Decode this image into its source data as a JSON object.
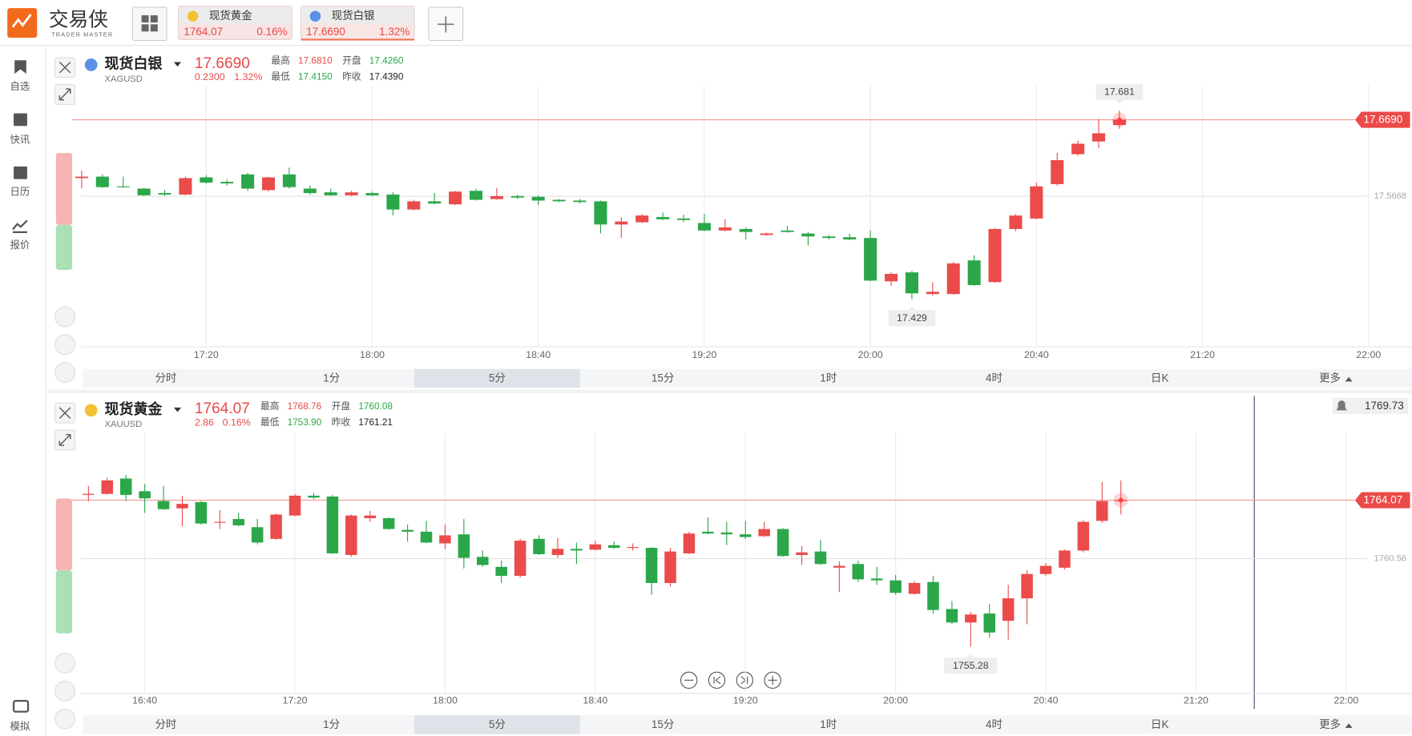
{
  "app": {
    "logo": "交易侠",
    "logo_sub": "TRADER MASTER"
  },
  "tabs": [
    {
      "name": "现货黄金",
      "price": "1764.07",
      "change": "0.16%"
    },
    {
      "name": "现货白银",
      "price": "17.6690",
      "change": "1.32%"
    }
  ],
  "sidebar": [
    "自选",
    "快讯",
    "日历",
    "报价"
  ],
  "sidebar_bottom": "模拟",
  "chart_data": [
    {
      "type": "candlestick",
      "name": "现货白银",
      "symbol": "XAGUSD",
      "price": "17.6690",
      "change": "0.2300",
      "change_pct": "1.32%",
      "stats": [
        {
          "label": "最高",
          "value": "17.6810",
          "color": "#e84a4a"
        },
        {
          "label": "开盘",
          "value": "17.4260",
          "color": "#2aa845"
        },
        {
          "label": "最低",
          "value": "17.4150",
          "color": "#2aa845"
        },
        {
          "label": "昨收",
          "value": "17.4390",
          "color": "#222222"
        }
      ],
      "periods": [
        "分时",
        "1分",
        "5分",
        "15分",
        "1时",
        "4时",
        "日K",
        "更多"
      ],
      "selected_period": 2,
      "x": [
        0,
        1,
        2,
        3,
        4,
        5,
        6,
        7,
        8,
        9,
        10,
        11,
        12,
        13,
        14,
        15,
        16,
        17,
        18,
        19,
        20,
        21,
        22,
        23,
        24,
        25,
        26,
        27,
        28,
        29,
        30,
        31,
        32,
        33,
        34,
        35,
        36,
        37,
        38,
        39,
        40,
        41,
        42,
        43,
        44,
        45,
        46,
        47,
        48,
        49,
        50
      ],
      "open": [
        17.591,
        17.593,
        17.58,
        17.577,
        17.571,
        17.569,
        17.592,
        17.586,
        17.596,
        17.575,
        17.596,
        17.577,
        17.572,
        17.568,
        17.571,
        17.569,
        17.549,
        17.56,
        17.556,
        17.574,
        17.563,
        17.567,
        17.566,
        17.562,
        17.561,
        17.56,
        17.529,
        17.532,
        17.539,
        17.537,
        17.531,
        17.521,
        17.523,
        17.515,
        17.521,
        17.517,
        17.513,
        17.512,
        17.511,
        17.453,
        17.465,
        17.436,
        17.436,
        17.481,
        17.452,
        17.523,
        17.537,
        17.583,
        17.623,
        17.64,
        17.662
      ],
      "high": [
        17.601,
        17.596,
        17.593,
        17.578,
        17.575,
        17.593,
        17.595,
        17.589,
        17.598,
        17.593,
        17.605,
        17.581,
        17.577,
        17.574,
        17.573,
        17.572,
        17.562,
        17.571,
        17.574,
        17.577,
        17.578,
        17.569,
        17.568,
        17.563,
        17.563,
        17.561,
        17.539,
        17.543,
        17.545,
        17.542,
        17.543,
        17.536,
        17.525,
        17.518,
        17.527,
        17.519,
        17.515,
        17.517,
        17.521,
        17.465,
        17.467,
        17.452,
        17.479,
        17.488,
        17.524,
        17.543,
        17.585,
        17.625,
        17.641,
        17.67,
        17.681
      ],
      "low": [
        17.577,
        17.578,
        17.578,
        17.567,
        17.567,
        17.568,
        17.584,
        17.581,
        17.574,
        17.573,
        17.577,
        17.569,
        17.567,
        17.567,
        17.567,
        17.541,
        17.548,
        17.556,
        17.555,
        17.561,
        17.562,
        17.563,
        17.555,
        17.559,
        17.557,
        17.517,
        17.511,
        17.531,
        17.535,
        17.532,
        17.52,
        17.52,
        17.509,
        17.514,
        17.518,
        17.501,
        17.509,
        17.508,
        17.453,
        17.447,
        17.429,
        17.434,
        17.435,
        17.447,
        17.451,
        17.52,
        17.536,
        17.581,
        17.621,
        17.631,
        17.657
      ],
      "close": [
        17.593,
        17.579,
        17.579,
        17.568,
        17.569,
        17.591,
        17.585,
        17.584,
        17.577,
        17.592,
        17.579,
        17.571,
        17.568,
        17.572,
        17.568,
        17.549,
        17.56,
        17.557,
        17.573,
        17.562,
        17.567,
        17.565,
        17.561,
        17.56,
        17.559,
        17.529,
        17.533,
        17.541,
        17.536,
        17.535,
        17.521,
        17.525,
        17.519,
        17.517,
        17.519,
        17.513,
        17.511,
        17.509,
        17.454,
        17.463,
        17.437,
        17.439,
        17.477,
        17.448,
        17.523,
        17.541,
        17.58,
        17.615,
        17.637,
        17.651,
        17.669
      ],
      "xlim": [
        -0.5,
        64
      ],
      "xticks": [
        {
          "value": 6,
          "label": "17:20"
        },
        {
          "value": 14,
          "label": "18:00"
        },
        {
          "value": 22,
          "label": "18:40"
        },
        {
          "value": 30,
          "label": "19:20"
        },
        {
          "value": 38,
          "label": "20:00"
        },
        {
          "value": 46,
          "label": "20:40"
        },
        {
          "value": 54,
          "label": "21:20"
        },
        {
          "value": 62,
          "label": "22:00"
        }
      ],
      "ylim": [
        17.366,
        17.763
      ],
      "yticks": [
        17.5668
      ],
      "last_price": {
        "value": 17.669,
        "label": "17.6690"
      },
      "high_label": 17.681,
      "low_label": 17.429,
      "up_color": "#eb4b4b",
      "down_color": "#2ba74a",
      "grid": true
    },
    {
      "type": "candlestick",
      "name": "现货黄金",
      "symbol": "XAUUSD",
      "price": "1764.07",
      "change": "2.86",
      "change_pct": "0.16%",
      "stats": [
        {
          "label": "最高",
          "value": "1768.76",
          "color": "#e84a4a"
        },
        {
          "label": "开盘",
          "value": "1760.08",
          "color": "#2aa845"
        },
        {
          "label": "最低",
          "value": "1753.90",
          "color": "#2aa845"
        },
        {
          "label": "昨收",
          "value": "1761.21",
          "color": "#222222"
        }
      ],
      "periods": [
        "分时",
        "1分",
        "5分",
        "15分",
        "1时",
        "4时",
        "日K",
        "更多"
      ],
      "selected_period": 2,
      "x": [
        0,
        1,
        2,
        3,
        4,
        5,
        6,
        7,
        8,
        9,
        10,
        11,
        12,
        13,
        14,
        15,
        16,
        17,
        18,
        19,
        20,
        21,
        22,
        23,
        24,
        25,
        26,
        27,
        28,
        29,
        30,
        31,
        32,
        33,
        34,
        35,
        36,
        37,
        38,
        39,
        40,
        41,
        42,
        43,
        44,
        45,
        46,
        47,
        48,
        49,
        50,
        51,
        52,
        53,
        54,
        55
      ],
      "open": [
        1764.39,
        1764.45,
        1765.37,
        1764.61,
        1764.02,
        1763.58,
        1763.96,
        1762.72,
        1762.94,
        1762.45,
        1761.75,
        1763.15,
        1764.34,
        1764.29,
        1760.78,
        1762.99,
        1762.99,
        1762.29,
        1762.18,
        1761.48,
        1762.02,
        1760.67,
        1760.07,
        1759.53,
        1761.75,
        1760.78,
        1761.15,
        1761.1,
        1761.37,
        1761.21,
        1761.21,
        1759.1,
        1760.88,
        1762.18,
        1762.13,
        1762.02,
        1761.91,
        1762.34,
        1760.78,
        1760.99,
        1760.02,
        1760.24,
        1759.37,
        1759.26,
        1758.45,
        1759.16,
        1757.54,
        1756.73,
        1757.27,
        1756.83,
        1758.18,
        1759.64,
        1760.02,
        1761.05,
        1762.83,
        1764.02
      ],
      "high": [
        1764.93,
        1765.42,
        1765.58,
        1765.04,
        1764.93,
        1764.34,
        1764.02,
        1763.48,
        1763.31,
        1762.94,
        1763.26,
        1764.45,
        1764.5,
        1764.39,
        1763.21,
        1763.42,
        1763.04,
        1762.61,
        1762.83,
        1762.61,
        1762.94,
        1761.05,
        1760.45,
        1761.75,
        1761.96,
        1761.8,
        1761.53,
        1761.64,
        1761.59,
        1761.48,
        1761.26,
        1761.21,
        1762.18,
        1763.04,
        1762.77,
        1762.83,
        1762.77,
        1762.4,
        1761.32,
        1761.69,
        1760.4,
        1760.45,
        1760.07,
        1759.59,
        1759.21,
        1759.53,
        1758.02,
        1757.37,
        1757.86,
        1758.99,
        1759.86,
        1760.29,
        1761.1,
        1762.88,
        1765.15,
        1765.26
      ],
      "low": [
        1764.02,
        1764.39,
        1764.02,
        1763.31,
        1763.48,
        1762.5,
        1762.61,
        1762.34,
        1762.5,
        1761.42,
        1761.69,
        1763.1,
        1764.12,
        1760.83,
        1760.67,
        1762.77,
        1762.29,
        1761.59,
        1761.48,
        1761.15,
        1759.97,
        1760.07,
        1759.1,
        1759.43,
        1760.78,
        1760.61,
        1760.24,
        1761.05,
        1761.15,
        1761.05,
        1758.4,
        1758.89,
        1760.83,
        1762.02,
        1761.37,
        1761.75,
        1761.86,
        1760.67,
        1760.18,
        1760.18,
        1758.56,
        1759.16,
        1758.99,
        1758.4,
        1758.4,
        1757.27,
        1756.62,
        1755.28,
        1755.81,
        1755.7,
        1756.62,
        1759.53,
        1759.91,
        1760.94,
        1762.72,
        1763.21
      ],
      "close": [
        1764.45,
        1765.26,
        1764.39,
        1764.18,
        1763.53,
        1763.85,
        1762.67,
        1762.77,
        1762.56,
        1761.53,
        1763.21,
        1764.34,
        1764.23,
        1760.88,
        1763.15,
        1763.15,
        1762.34,
        1762.18,
        1761.53,
        1761.96,
        1760.61,
        1760.18,
        1759.53,
        1761.64,
        1760.83,
        1761.15,
        1761.05,
        1761.42,
        1761.21,
        1761.26,
        1759.1,
        1760.99,
        1762.07,
        1762.07,
        1762.02,
        1761.86,
        1762.34,
        1760.72,
        1760.94,
        1760.24,
        1760.13,
        1759.32,
        1759.26,
        1758.51,
        1759.1,
        1757.48,
        1756.73,
        1757.21,
        1756.13,
        1758.18,
        1759.64,
        1760.13,
        1761.05,
        1762.77,
        1764.02,
        1764.07
      ],
      "xlim": [
        -1,
        70.5
      ],
      "xticks": [
        {
          "value": 3,
          "label": "16:40"
        },
        {
          "value": 11,
          "label": "17:20"
        },
        {
          "value": 19,
          "label": "18:00"
        },
        {
          "value": 27,
          "label": "18:40"
        },
        {
          "value": 35,
          "label": "19:20"
        },
        {
          "value": 43,
          "label": "20:00"
        },
        {
          "value": 51,
          "label": "20:40"
        },
        {
          "value": 59,
          "label": "21:20"
        },
        {
          "value": 67,
          "label": "22:00"
        }
      ],
      "ylim": [
        1752.51,
        1770.33
      ],
      "yticks": [
        1760.56
      ],
      "last_price": {
        "value": 1764.07,
        "label": "1764.07"
      },
      "low_label": 1755.28,
      "alert_price": 1769.73,
      "up_color": "#eb4b4b",
      "down_color": "#2ba74a",
      "grid": true
    }
  ]
}
